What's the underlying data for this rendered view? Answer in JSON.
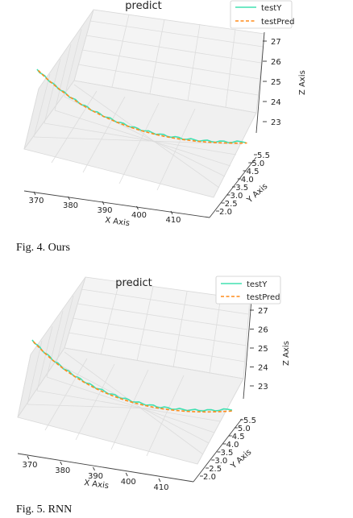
{
  "chart_data": [
    {
      "type": "line",
      "title": "predict",
      "caption": "Fig. 4. Ours",
      "xlabel": "X Axis",
      "ylabel": "Y Axis",
      "zlabel": "Z Axis",
      "x_ticks": [
        "370",
        "380",
        "390",
        "400",
        "410"
      ],
      "y_ticks": [
        "2.0",
        "2.5",
        "3.0",
        "3.5",
        "4.0",
        "4.5",
        "5.0",
        "5.5"
      ],
      "z_ticks": [
        "23",
        "24",
        "25",
        "26",
        "27"
      ],
      "legend": [
        "testY",
        "testPred"
      ],
      "legend_placement": "top-right",
      "grid": true,
      "colors": {
        "testY": "#40e0b0",
        "testPred": "#ff8c1a"
      },
      "series": [
        {
          "name": "testY",
          "style": "solid",
          "color": "#40e0b0"
        },
        {
          "name": "testPred",
          "style": "dashed",
          "color": "#ff8c1a"
        }
      ]
    },
    {
      "type": "line",
      "title": "predict",
      "caption": "Fig. 5. RNN",
      "xlabel": "X Axis",
      "ylabel": "Y Axis",
      "zlabel": "Z Axis",
      "x_ticks": [
        "370",
        "380",
        "390",
        "400",
        "410"
      ],
      "y_ticks": [
        "2.0",
        "2.5",
        "3.0",
        "3.5",
        "4.0",
        "4.5",
        "5.0",
        "5.5"
      ],
      "z_ticks": [
        "23",
        "24",
        "25",
        "26",
        "27"
      ],
      "legend": [
        "testY",
        "testPred"
      ],
      "legend_placement": "top-right",
      "grid": true,
      "colors": {
        "testY": "#40e0b0",
        "testPred": "#ff8c1a"
      },
      "series": [
        {
          "name": "testY",
          "style": "solid",
          "color": "#40e0b0"
        },
        {
          "name": "testPred",
          "style": "dashed",
          "color": "#ff8c1a"
        }
      ]
    }
  ]
}
